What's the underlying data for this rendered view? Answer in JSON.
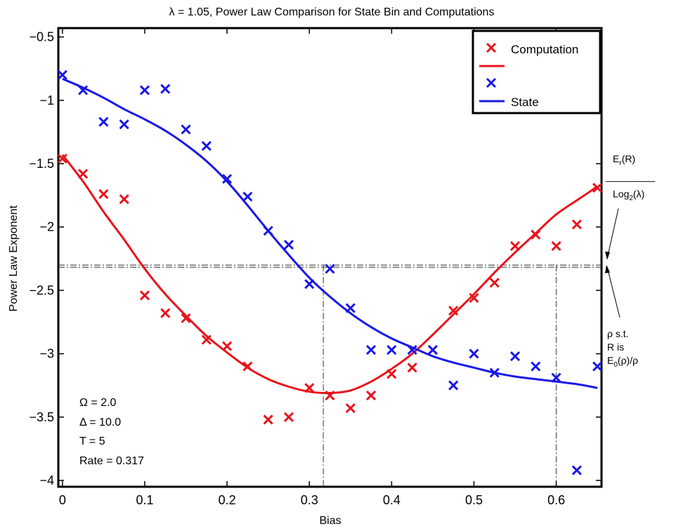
{
  "chart_data": {
    "type": "scatter",
    "title": "λ = 1.05, Power Law Comparison for State Bin and Computations",
    "xlabel": "Bias",
    "ylabel": "Power Law Exponent",
    "xlim": [
      -0.005,
      0.655
    ],
    "ylim": [
      -4.05,
      -0.43
    ],
    "xticks": [
      0,
      0.1,
      0.2,
      0.3,
      0.4,
      0.5,
      0.6
    ],
    "xtick_labels": [
      "0",
      "0.1",
      "0.2",
      "0.3",
      "0.4",
      "0.5",
      "0.6"
    ],
    "yticks": [
      -0.5,
      -1,
      -1.5,
      -2,
      -2.5,
      -3,
      -3.5,
      -4
    ],
    "ytick_labels": [
      "−0.5",
      "−1",
      "−1.5",
      "−2",
      "−2.5",
      "−3",
      "−3.5",
      "−4"
    ],
    "grid": false,
    "legend_position": "top-right",
    "colors": {
      "red": "#e8141c",
      "blue": "#1919e6",
      "guide": "#333333"
    },
    "series": [
      {
        "name": "Computation",
        "kind": "markers",
        "color": "#e8141c",
        "x": [
          0,
          0.025,
          0.05,
          0.075,
          0.1,
          0.125,
          0.15,
          0.175,
          0.2,
          0.225,
          0.25,
          0.275,
          0.3,
          0.325,
          0.35,
          0.375,
          0.4,
          0.425,
          0.45,
          0.475,
          0.5,
          0.525,
          0.55,
          0.575,
          0.6,
          0.625,
          0.65
        ],
        "y": [
          -1.46,
          -1.58,
          -1.74,
          -1.78,
          -2.54,
          -2.68,
          -2.72,
          -2.89,
          -2.94,
          -3.1,
          -3.52,
          -3.5,
          -3.27,
          -3.33,
          -3.43,
          -3.33,
          -3.16,
          -3.11,
          -2.97,
          -2.66,
          -2.56,
          -2.44,
          -2.15,
          -2.06,
          -2.15,
          -1.98,
          -1.69
        ]
      },
      {
        "name": "",
        "kind": "line",
        "color": "#e8141c",
        "x": [
          0,
          0.025,
          0.05,
          0.075,
          0.1,
          0.125,
          0.15,
          0.175,
          0.2,
          0.225,
          0.25,
          0.275,
          0.3,
          0.325,
          0.35,
          0.375,
          0.4,
          0.425,
          0.45,
          0.475,
          0.5,
          0.525,
          0.55,
          0.575,
          0.6,
          0.625,
          0.65
        ],
        "y": [
          -1.43,
          -1.64,
          -1.88,
          -2.1,
          -2.33,
          -2.53,
          -2.7,
          -2.86,
          -2.99,
          -3.11,
          -3.2,
          -3.26,
          -3.3,
          -3.31,
          -3.29,
          -3.22,
          -3.12,
          -3.0,
          -2.85,
          -2.69,
          -2.53,
          -2.36,
          -2.2,
          -2.05,
          -1.9,
          -1.79,
          -1.68
        ]
      },
      {
        "name": "",
        "kind": "markers",
        "color": "#1919e6",
        "x": [
          0,
          0.025,
          0.05,
          0.075,
          0.1,
          0.125,
          0.15,
          0.175,
          0.2,
          0.225,
          0.25,
          0.275,
          0.3,
          0.325,
          0.35,
          0.375,
          0.4,
          0.425,
          0.45,
          0.475,
          0.5,
          0.525,
          0.55,
          0.575,
          0.6,
          0.625,
          0.65
        ],
        "y": [
          -0.8,
          -0.92,
          -1.17,
          -1.19,
          -0.92,
          -0.91,
          -1.23,
          -1.36,
          -1.62,
          -1.76,
          -2.03,
          -2.14,
          -2.45,
          -2.33,
          -2.64,
          -2.97,
          -2.97,
          -2.97,
          -2.97,
          -3.25,
          -3.0,
          -3.15,
          -3.02,
          -3.1,
          -3.19,
          -3.92,
          -3.1
        ]
      },
      {
        "name": "State",
        "kind": "line",
        "color": "#1919e6",
        "x": [
          0,
          0.025,
          0.05,
          0.075,
          0.1,
          0.125,
          0.15,
          0.175,
          0.2,
          0.225,
          0.25,
          0.275,
          0.3,
          0.325,
          0.35,
          0.375,
          0.4,
          0.425,
          0.45,
          0.475,
          0.5,
          0.525,
          0.55,
          0.575,
          0.6,
          0.625,
          0.65
        ],
        "y": [
          -0.83,
          -0.9,
          -0.98,
          -1.07,
          -1.15,
          -1.24,
          -1.35,
          -1.48,
          -1.64,
          -1.83,
          -2.03,
          -2.22,
          -2.4,
          -2.55,
          -2.68,
          -2.79,
          -2.88,
          -2.95,
          -3.02,
          -3.07,
          -3.11,
          -3.15,
          -3.18,
          -3.2,
          -3.22,
          -3.24,
          -3.27
        ]
      }
    ],
    "guides": {
      "horizontal_y": -2.3,
      "vertical_x": [
        0.317,
        0.6
      ]
    },
    "annotations": {
      "params": [
        "Ω = 2.0",
        "Δ = 10.0",
        "T = 5",
        "Rate = 0.317"
      ],
      "fraction_numerator": {
        "main": "E",
        "sub": "r",
        "rest": "(R)"
      },
      "fraction_bar": "_________",
      "fraction_denominator": {
        "main": "Log",
        "sub": "2",
        "rest": "(λ)"
      },
      "rho_lines": [
        "ρ s.t.",
        "R is"
      ],
      "rho_formula": {
        "main": "E",
        "sub": "0",
        "rest": "(ρ)/ρ"
      }
    }
  }
}
